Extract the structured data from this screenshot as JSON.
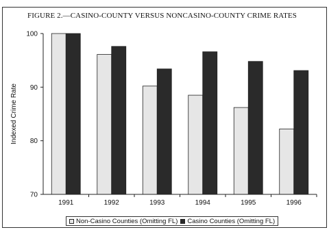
{
  "chart_data": {
    "type": "bar",
    "title": "FIGURE 2.—CASINO-COUNTY VERSUS NONCASINO-COUNTY CRIME RATES",
    "ylabel": "Indexed Crime Rate",
    "xlabel": "",
    "categories": [
      "1991",
      "1992",
      "1993",
      "1994",
      "1995",
      "1996"
    ],
    "ylim": [
      70,
      100
    ],
    "yticks": [
      70,
      80,
      90,
      100
    ],
    "grid": false,
    "legend_position": "bottom",
    "series": [
      {
        "name": "Non-Casino Counties (Omitting FL)",
        "values": [
          100,
          96.1,
          90.2,
          88.5,
          86.2,
          82.2
        ],
        "color": "#e6e6e6"
      },
      {
        "name": "Casino Counties (Omitting FL)",
        "values": [
          100,
          97.6,
          93.4,
          96.6,
          94.8,
          93.1
        ],
        "color": "#2a2a2a"
      }
    ]
  }
}
